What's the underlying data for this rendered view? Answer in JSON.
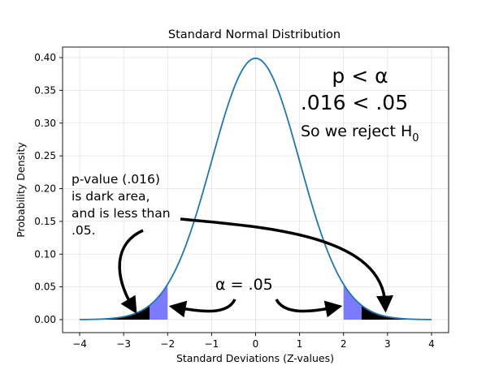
{
  "chart_data": {
    "type": "line",
    "title": "Standard Normal Distribution",
    "xlabel": "Standard Deviations (Z-values)",
    "ylabel": "Probability Density",
    "xlim": [
      -4,
      4
    ],
    "ylim": [
      0,
      0.4
    ],
    "x_ticks": [
      "−4",
      "−3",
      "−2",
      "−1",
      "0",
      "1",
      "2",
      "3",
      "4"
    ],
    "x_tick_values": [
      -4,
      -3,
      -2,
      -1,
      0,
      1,
      2,
      3,
      4
    ],
    "y_ticks": [
      "0.00",
      "0.05",
      "0.10",
      "0.15",
      "0.20",
      "0.25",
      "0.30",
      "0.35",
      "0.40"
    ],
    "y_tick_values": [
      0,
      0.05,
      0.1,
      0.15,
      0.2,
      0.25,
      0.3,
      0.35,
      0.4
    ],
    "grid": true,
    "series": [
      {
        "type": "line",
        "function": "standard_normal_pdf",
        "x_range": [
          -4,
          4
        ],
        "color": "#1f77b4"
      }
    ],
    "shaded_regions": [
      {
        "from": -2,
        "to": -2.41,
        "color": "#7b7bff",
        "meaning": "alpha"
      },
      {
        "from": -4,
        "to": -2.41,
        "color": "#000000",
        "meaning": "p-value"
      },
      {
        "from": 2,
        "to": 2.41,
        "color": "#7b7bff",
        "meaning": "alpha"
      },
      {
        "from": 2.41,
        "to": 4,
        "color": "#000000",
        "meaning": "p-value"
      }
    ],
    "annotations": {
      "p_lt_alpha": "p < α",
      "values_compare": ".016 < .05",
      "reject_text": "So we reject H",
      "reject_subscript": "0",
      "pvalue_lines": [
        "p-value (.016)",
        "is dark area,",
        "and is less than",
        ".05."
      ],
      "alpha_text": "α  = .05"
    }
  }
}
